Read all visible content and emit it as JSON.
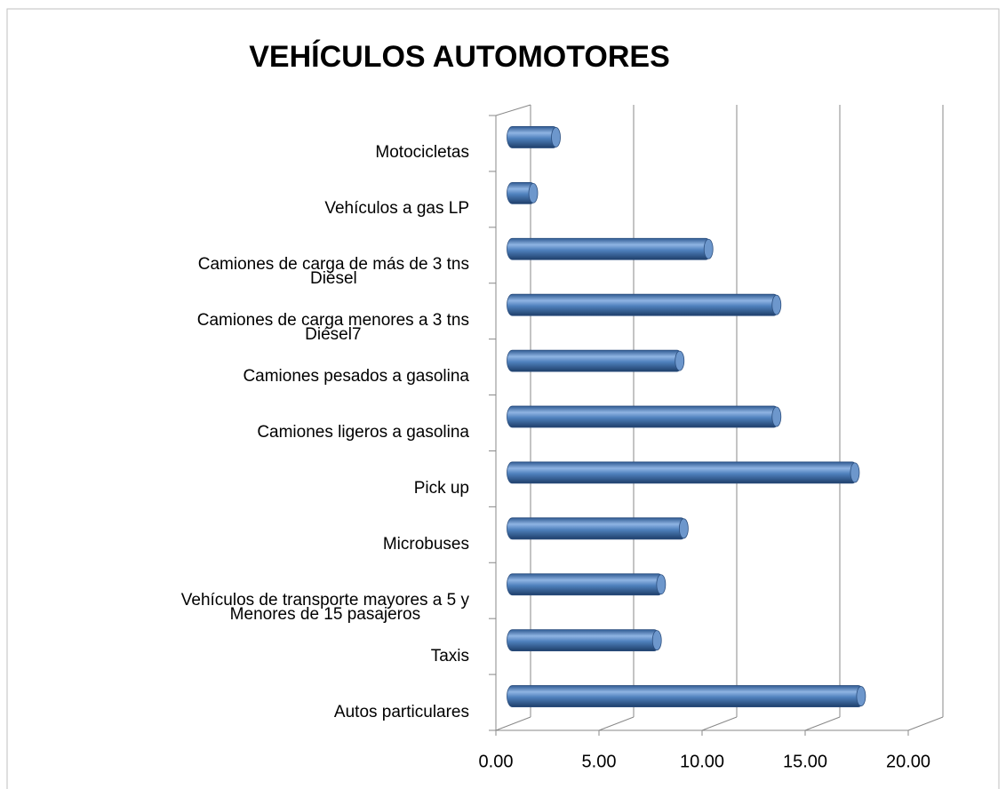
{
  "chart_data": {
    "type": "bar3d-horizontal",
    "title": "VEHÍCULOS AUTOMOTORES",
    "categories": [
      "Autos particulares",
      "Taxis",
      "Vehículos de transporte mayores a 5 y\nMenores de 15 pasajeros",
      "Microbuses",
      "Pick up",
      "Camiones ligeros a gasolina",
      "Camiones pesados a gasolina",
      "Camiones de carga menores a 3 tns\nDiésel7",
      "Camiones de carga de más de 3 tns\nDiésel",
      "Vehículos a gas LP",
      "Motocicletas"
    ],
    "values": [
      17.0,
      7.1,
      7.3,
      8.4,
      16.7,
      12.9,
      8.2,
      12.9,
      9.6,
      1.1,
      2.2
    ],
    "color": "#4f81bd",
    "xlim": [
      0,
      20
    ],
    "xticks": [
      {
        "value": 0,
        "label": "0.00"
      },
      {
        "value": 5,
        "label": "5.00"
      },
      {
        "value": 10,
        "label": "10.00"
      },
      {
        "value": 15,
        "label": "15.00"
      },
      {
        "value": 20,
        "label": "20.00"
      }
    ],
    "grid": true
  }
}
